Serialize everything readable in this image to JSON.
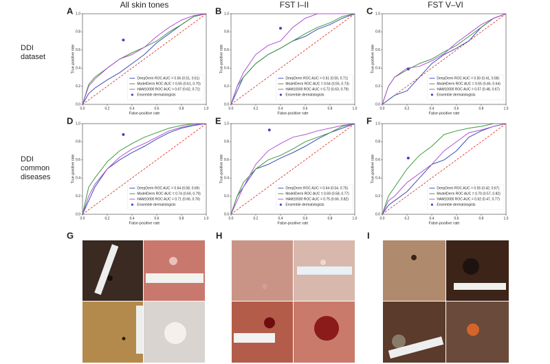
{
  "figure": {
    "column_titles": [
      "All skin tones",
      "FST I–II",
      "FST V–VI"
    ],
    "row_labels": [
      [
        "DDI",
        "dataset"
      ],
      [
        "DDI",
        "common",
        "diseases"
      ]
    ],
    "photo_labels": [
      "G",
      "H",
      "I"
    ]
  },
  "chart_data": [
    {
      "type": "line",
      "label": "A",
      "xlabel": "False-positive rate",
      "ylabel": "True-positive rate",
      "xlim": [
        0,
        1
      ],
      "ylim": [
        0,
        1
      ],
      "xticks": [
        {
          "value": 0,
          "label": "0.0"
        },
        0.2,
        0.4,
        0.6,
        0.8,
        {
          "value": 1,
          "label": "1.0"
        }
      ],
      "yticks": [
        {
          "value": 0,
          "label": "0.0"
        },
        0.2,
        0.4,
        0.6,
        0.8,
        {
          "value": 1,
          "label": "1.0"
        }
      ],
      "x": [
        0,
        0.05,
        0.1,
        0.2,
        0.3,
        0.4,
        0.5,
        0.6,
        0.7,
        0.8,
        0.9,
        1
      ],
      "series": [
        {
          "name": "DeepDerm ROC AUC = 0.56 (0.51, 0.61)",
          "color": "#3a4bb5",
          "values": [
            0,
            0.12,
            0.18,
            0.27,
            0.35,
            0.45,
            0.55,
            0.68,
            0.78,
            0.88,
            0.97,
            1
          ]
        },
        {
          "name": "ModelDerm ROC AUC = 0.65 (0.61, 0.70)",
          "color": "#3a9a3a",
          "values": [
            0,
            0.22,
            0.3,
            0.4,
            0.5,
            0.57,
            0.63,
            0.7,
            0.8,
            0.88,
            0.97,
            1
          ]
        },
        {
          "name": "HAM10000 ROC AUC = 0.67 (0.62, 0.71)",
          "color": "#b04fd6",
          "values": [
            0,
            0.2,
            0.28,
            0.4,
            0.5,
            0.55,
            0.63,
            0.75,
            0.85,
            0.93,
            0.98,
            1
          ]
        }
      ],
      "ensemble": {
        "name": "Ensemble dermatologists",
        "color": "#4b3fc4",
        "x": [
          0.33
        ],
        "values": [
          0.71
        ]
      }
    },
    {
      "type": "line",
      "label": "B",
      "xlabel": "False-positive rate",
      "ylabel": "True-positive rate",
      "xlim": [
        0,
        1
      ],
      "ylim": [
        0,
        1
      ],
      "xticks": [
        {
          "value": 0,
          "label": "0.0"
        },
        0.2,
        0.4,
        0.6,
        0.8,
        {
          "value": 1,
          "label": "1.0"
        }
      ],
      "yticks": [
        {
          "value": 0,
          "label": "0.0"
        },
        0.2,
        0.4,
        0.6,
        0.8,
        {
          "value": 1,
          "label": "1.0"
        }
      ],
      "x": [
        0,
        0.05,
        0.1,
        0.2,
        0.3,
        0.4,
        0.5,
        0.6,
        0.7,
        0.8,
        0.9,
        1
      ],
      "series": [
        {
          "name": "DeepDerm ROC AUC = 0.61 (0.50, 0.71)",
          "color": "#3a4bb5",
          "values": [
            0,
            0.15,
            0.3,
            0.45,
            0.55,
            0.62,
            0.7,
            0.75,
            0.83,
            0.88,
            0.95,
            1
          ]
        },
        {
          "name": "ModelDerm ROC AUC = 0.64 (0.55, 0.73)",
          "color": "#3a9a3a",
          "values": [
            0,
            0.2,
            0.3,
            0.45,
            0.55,
            0.62,
            0.7,
            0.78,
            0.85,
            0.9,
            0.97,
            1
          ]
        },
        {
          "name": "HAM10000 ROC AUC = 0.72 (0.63, 0.79)",
          "color": "#b04fd6",
          "values": [
            0,
            0.2,
            0.35,
            0.55,
            0.65,
            0.7,
            0.85,
            0.95,
            1,
            1,
            1,
            1
          ]
        }
      ],
      "ensemble": {
        "name": "Ensemble dermatologists",
        "color": "#4b3fc4",
        "x": [
          0.4
        ],
        "values": [
          0.84
        ]
      }
    },
    {
      "type": "line",
      "label": "C",
      "xlabel": "False-positive rate",
      "ylabel": "True-positive rate",
      "xlim": [
        0,
        1
      ],
      "ylim": [
        0,
        1
      ],
      "xticks": [
        {
          "value": 0,
          "label": "0.0"
        },
        0.2,
        0.4,
        0.6,
        0.8,
        {
          "value": 1,
          "label": "1.0"
        }
      ],
      "yticks": [
        {
          "value": 0,
          "label": "0.0"
        },
        0.2,
        0.4,
        0.6,
        0.8,
        {
          "value": 1,
          "label": "1.0"
        }
      ],
      "x": [
        0,
        0.05,
        0.1,
        0.2,
        0.3,
        0.4,
        0.5,
        0.6,
        0.7,
        0.8,
        0.9,
        1
      ],
      "series": [
        {
          "name": "DeepDerm ROC AUC = 0.50 (0.41, 0.58)",
          "color": "#3a4bb5",
          "values": [
            0,
            0.05,
            0.1,
            0.15,
            0.3,
            0.45,
            0.55,
            0.62,
            0.7,
            0.85,
            0.95,
            1
          ]
        },
        {
          "name": "ModelDerm ROC AUC = 0.55 (0.46, 0.64)",
          "color": "#3a9a3a",
          "values": [
            0,
            0.2,
            0.3,
            0.38,
            0.45,
            0.5,
            0.58,
            0.65,
            0.75,
            0.85,
            0.95,
            1
          ]
        },
        {
          "name": "HAM10000 ROC AUC = 0.57 (0.48, 0.67)",
          "color": "#b04fd6",
          "values": [
            0,
            0.2,
            0.3,
            0.4,
            0.42,
            0.48,
            0.56,
            0.68,
            0.78,
            0.88,
            0.95,
            1
          ]
        }
      ],
      "ensemble": {
        "name": "Ensemble dermatologists",
        "color": "#4b3fc4",
        "x": [
          0.21
        ],
        "values": [
          0.39
        ]
      }
    },
    {
      "type": "line",
      "label": "D",
      "xlabel": "False-positive rate",
      "ylabel": "True-positive rate",
      "xlim": [
        0,
        1
      ],
      "ylim": [
        0,
        1
      ],
      "xticks": [
        {
          "value": 0,
          "label": "0.0"
        },
        0.2,
        0.4,
        0.6,
        0.8,
        {
          "value": 1,
          "label": "1.0"
        }
      ],
      "yticks": [
        {
          "value": 0,
          "label": "0.0"
        },
        0.2,
        0.4,
        0.6,
        0.8,
        {
          "value": 1,
          "label": "1.0"
        }
      ],
      "x": [
        0,
        0.05,
        0.1,
        0.2,
        0.3,
        0.4,
        0.5,
        0.6,
        0.7,
        0.8,
        0.9,
        1
      ],
      "series": [
        {
          "name": "DeepDerm ROC AUC = 0.64 (0.58, 0.69)",
          "color": "#3a4bb5",
          "values": [
            0,
            0.15,
            0.3,
            0.5,
            0.6,
            0.68,
            0.75,
            0.83,
            0.9,
            0.95,
            0.98,
            1
          ]
        },
        {
          "name": "ModelDerm ROC AUC = 0.74 (0.69, 0.79)",
          "color": "#3a9a3a",
          "values": [
            0,
            0.3,
            0.4,
            0.58,
            0.7,
            0.78,
            0.85,
            0.9,
            0.95,
            0.98,
            1,
            1
          ]
        },
        {
          "name": "HAM10000 ROC AUC = 0.71 (0.66, 0.76)",
          "color": "#b04fd6",
          "values": [
            0,
            0.2,
            0.33,
            0.5,
            0.63,
            0.72,
            0.78,
            0.85,
            0.92,
            0.96,
            0.99,
            1
          ]
        }
      ],
      "ensemble": {
        "name": "Ensemble dermatologists",
        "color": "#4b3fc4",
        "x": [
          0.33
        ],
        "values": [
          0.88
        ]
      }
    },
    {
      "type": "line",
      "label": "E",
      "xlabel": "False-positive rate",
      "ylabel": "True-positive rate",
      "xlim": [
        0,
        1
      ],
      "ylim": [
        0,
        1
      ],
      "xticks": [
        {
          "value": 0,
          "label": "0.0"
        },
        0.2,
        0.4,
        0.6,
        0.8,
        {
          "value": 1,
          "label": "1.0"
        }
      ],
      "yticks": [
        {
          "value": 0,
          "label": "0.0"
        },
        0.2,
        0.4,
        0.6,
        0.8,
        {
          "value": 1,
          "label": "1.0"
        }
      ],
      "x": [
        0,
        0.05,
        0.1,
        0.2,
        0.3,
        0.4,
        0.5,
        0.6,
        0.7,
        0.8,
        0.9,
        1
      ],
      "series": [
        {
          "name": "DeepDerm ROC AUC = 0.64 (0.54, 0.75)",
          "color": "#3a4bb5",
          "values": [
            0,
            0.2,
            0.3,
            0.5,
            0.55,
            0.62,
            0.68,
            0.75,
            0.83,
            0.9,
            0.95,
            1
          ]
        },
        {
          "name": "ModelDerm ROC AUC = 0.69 (0.58, 0.77)",
          "color": "#3a9a3a",
          "values": [
            0,
            0.2,
            0.35,
            0.5,
            0.6,
            0.65,
            0.72,
            0.8,
            0.85,
            0.9,
            0.97,
            1
          ]
        },
        {
          "name": "HAM10000 ROC AUC = 0.75 (0.66, 0.82)",
          "color": "#b04fd6",
          "values": [
            0,
            0.15,
            0.3,
            0.55,
            0.7,
            0.78,
            0.85,
            0.88,
            0.92,
            0.95,
            0.98,
            1
          ]
        }
      ],
      "ensemble": {
        "name": "Ensemble dermatologists",
        "color": "#4b3fc4",
        "x": [
          0.31
        ],
        "values": [
          0.93
        ]
      }
    },
    {
      "type": "line",
      "label": "F",
      "xlabel": "False-positive rate",
      "ylabel": "True-positive rate",
      "xlim": [
        0,
        1
      ],
      "ylim": [
        0,
        1
      ],
      "xticks": [
        {
          "value": 0,
          "label": "0.0"
        },
        0.2,
        0.4,
        0.6,
        0.8,
        {
          "value": 1,
          "label": "1.0"
        }
      ],
      "yticks": [
        {
          "value": 0,
          "label": "0.0"
        },
        0.2,
        0.4,
        0.6,
        0.8,
        {
          "value": 1,
          "label": "1.0"
        }
      ],
      "x": [
        0,
        0.05,
        0.1,
        0.2,
        0.3,
        0.4,
        0.5,
        0.6,
        0.7,
        0.8,
        0.9,
        1
      ],
      "series": [
        {
          "name": "DeepDerm ROC AUC = 0.55 (0.42, 0.67)",
          "color": "#3a4bb5",
          "values": [
            0,
            0.1,
            0.15,
            0.25,
            0.4,
            0.55,
            0.6,
            0.7,
            0.85,
            0.92,
            0.97,
            1
          ]
        },
        {
          "name": "ModelDerm ROC AUC = 0.70 (0.57, 0.82)",
          "color": "#3a9a3a",
          "values": [
            0,
            0.2,
            0.3,
            0.5,
            0.65,
            0.75,
            0.88,
            0.92,
            0.95,
            0.97,
            1,
            1
          ]
        },
        {
          "name": "HAM10000 ROC AUC = 0.62 (0.47, 0.77)",
          "color": "#b04fd6",
          "values": [
            0,
            0.15,
            0.2,
            0.35,
            0.45,
            0.55,
            0.7,
            0.8,
            0.9,
            0.93,
            0.97,
            1
          ]
        }
      ],
      "ensemble": {
        "name": "Ensemble dermatologists",
        "color": "#4b3fc4",
        "x": [
          0.21
        ],
        "values": [
          0.62
        ]
      }
    }
  ]
}
